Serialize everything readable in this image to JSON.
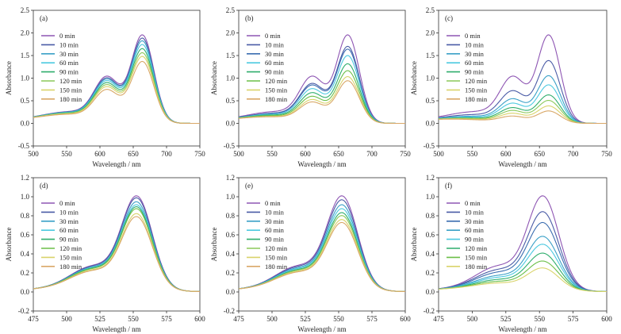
{
  "chart_data": [
    {
      "type": "line",
      "panel_label": "(a)",
      "xlabel": "Wavelength / nm",
      "ylabel": "Absorbance",
      "xlim": [
        500,
        750
      ],
      "ylim": [
        -0.5,
        2.5
      ],
      "xticks": [
        500,
        550,
        600,
        650,
        700,
        750
      ],
      "yticks": [
        -0.5,
        0.0,
        0.5,
        1.0,
        1.5,
        2.0,
        2.5
      ],
      "legend_position": "upper-left",
      "shape": "mb",
      "series": [
        {
          "name": "0 min",
          "color": "#8e56b3",
          "peak": 1.93,
          "shoulder": 1.16
        },
        {
          "name": "10 min",
          "color": "#4a5ba6",
          "peak": 1.86,
          "shoulder": 1.12
        },
        {
          "name": "30 min",
          "color": "#3aa0c7",
          "peak": 1.8,
          "shoulder": 1.09
        },
        {
          "name": "60 min",
          "color": "#4cc9e0",
          "peak": 1.72,
          "shoulder": 1.05
        },
        {
          "name": "90 min",
          "color": "#2fae6d",
          "peak": 1.63,
          "shoulder": 1.0
        },
        {
          "name": "120 min",
          "color": "#8cc95a",
          "peak": 1.54,
          "shoulder": 0.95
        },
        {
          "name": "150 min",
          "color": "#d9d36a",
          "peak": 1.46,
          "shoulder": 0.9
        },
        {
          "name": "180 min",
          "color": "#d9a868",
          "peak": 1.35,
          "shoulder": 0.83
        }
      ]
    },
    {
      "type": "line",
      "panel_label": "(b)",
      "xlabel": "Wavelength / nm",
      "ylabel": "Absorbance",
      "xlim": [
        500,
        750
      ],
      "ylim": [
        -0.5,
        2.5
      ],
      "xticks": [
        500,
        550,
        600,
        650,
        700,
        750
      ],
      "yticks": [
        -0.5,
        0.0,
        0.5,
        1.0,
        1.5,
        2.0,
        2.5
      ],
      "legend_position": "upper-left",
      "shape": "mb",
      "series": [
        {
          "name": "0 min",
          "color": "#8e56b3",
          "peak": 1.93,
          "shoulder": 1.16
        },
        {
          "name": "10 min",
          "color": "#4a5ba6",
          "peak": 1.68,
          "shoulder": 0.98
        },
        {
          "name": "30 min",
          "color": "#3b6db0",
          "peak": 1.62,
          "shoulder": 0.94
        },
        {
          "name": "60 min",
          "color": "#4cc9e0",
          "peak": 1.48,
          "shoulder": 0.85
        },
        {
          "name": "90 min",
          "color": "#2fae6d",
          "peak": 1.3,
          "shoulder": 0.75
        },
        {
          "name": "120 min",
          "color": "#6cbf48",
          "peak": 1.15,
          "shoulder": 0.66
        },
        {
          "name": "150 min",
          "color": "#d9d36a",
          "peak": 1.02,
          "shoulder": 0.58
        },
        {
          "name": "180 min",
          "color": "#d9a868",
          "peak": 0.93,
          "shoulder": 0.52
        }
      ]
    },
    {
      "type": "line",
      "panel_label": "(c)",
      "xlabel": "Wavelength / nm",
      "ylabel": "Absorbance",
      "xlim": [
        500,
        750
      ],
      "ylim": [
        -0.5,
        2.5
      ],
      "xticks": [
        500,
        550,
        600,
        650,
        700,
        750
      ],
      "yticks": [
        -0.5,
        0.0,
        0.5,
        1.0,
        1.5,
        2.0,
        2.5
      ],
      "legend_position": "upper-left",
      "shape": "mb",
      "series": [
        {
          "name": "0 min",
          "color": "#8e56b3",
          "peak": 1.93,
          "shoulder": 1.16
        },
        {
          "name": "10 min",
          "color": "#4a5ba6",
          "peak": 1.37,
          "shoulder": 0.8
        },
        {
          "name": "30 min",
          "color": "#3aa0c7",
          "peak": 1.04,
          "shoulder": 0.6
        },
        {
          "name": "60 min",
          "color": "#4cc9e0",
          "peak": 0.84,
          "shoulder": 0.49
        },
        {
          "name": "90 min",
          "color": "#2fae6d",
          "peak": 0.62,
          "shoulder": 0.38
        },
        {
          "name": "120 min",
          "color": "#8cc95a",
          "peak": 0.5,
          "shoulder": 0.31
        },
        {
          "name": "150 min",
          "color": "#d9d36a",
          "peak": 0.38,
          "shoulder": 0.24
        },
        {
          "name": "180 min",
          "color": "#d9a868",
          "peak": 0.27,
          "shoulder": 0.17
        }
      ]
    },
    {
      "type": "line",
      "panel_label": "(d)",
      "xlabel": "Wavelength / nm",
      "ylabel": "Absorbance",
      "xlim": [
        475,
        600
      ],
      "ylim": [
        -0.2,
        1.2
      ],
      "xticks": [
        475,
        500,
        525,
        550,
        575,
        600
      ],
      "yticks": [
        -0.2,
        0.0,
        0.2,
        0.4,
        0.6,
        0.8,
        1.0,
        1.2
      ],
      "legend_position": "upper-left",
      "shape": "rhb",
      "series": [
        {
          "name": "0 min",
          "color": "#8e56b3",
          "peak": 0.95
        },
        {
          "name": "10 min",
          "color": "#4a5ba6",
          "peak": 0.93
        },
        {
          "name": "30 min",
          "color": "#3aa0c7",
          "peak": 0.89
        },
        {
          "name": "60 min",
          "color": "#4cc9e0",
          "peak": 0.86
        },
        {
          "name": "90 min",
          "color": "#2fae6d",
          "peak": 0.84
        },
        {
          "name": "120 min",
          "color": "#6cbf48",
          "peak": 0.82
        },
        {
          "name": "150 min",
          "color": "#d9d36a",
          "peak": 0.77
        },
        {
          "name": "180 min",
          "color": "#d9a868",
          "peak": 0.74
        }
      ]
    },
    {
      "type": "line",
      "panel_label": "(e)",
      "xlabel": "Wavelength / nm",
      "ylabel": "Absorbance",
      "xlim": [
        475,
        600
      ],
      "ylim": [
        -0.2,
        1.2
      ],
      "xticks": [
        475,
        500,
        525,
        550,
        575,
        600
      ],
      "yticks": [
        -0.2,
        0.0,
        0.2,
        0.4,
        0.6,
        0.8,
        1.0,
        1.2
      ],
      "legend_position": "upper-left",
      "shape": "rhb",
      "series": [
        {
          "name": "0 min",
          "color": "#8e56b3",
          "peak": 0.95
        },
        {
          "name": "10 min",
          "color": "#4a5ba6",
          "peak": 0.91
        },
        {
          "name": "30 min",
          "color": "#3aa0c7",
          "peak": 0.86
        },
        {
          "name": "60 min",
          "color": "#4cc9e0",
          "peak": 0.82
        },
        {
          "name": "90 min",
          "color": "#2fae6d",
          "peak": 0.78
        },
        {
          "name": "120 min",
          "color": "#8cc95a",
          "peak": 0.75
        },
        {
          "name": "150 min",
          "color": "#d9d36a",
          "peak": 0.71
        },
        {
          "name": "180 min",
          "color": "#d9a868",
          "peak": 0.68
        }
      ]
    },
    {
      "type": "line",
      "panel_label": "(f)",
      "xlabel": "Wavelength / nm",
      "ylabel": "Absorbance",
      "xlim": [
        475,
        600
      ],
      "ylim": [
        -0.2,
        1.2
      ],
      "xticks": [
        475,
        500,
        525,
        550,
        575,
        600
      ],
      "yticks": [
        -0.2,
        0.0,
        0.2,
        0.4,
        0.6,
        0.8,
        1.0,
        1.2
      ],
      "legend_position": "upper-left",
      "shape": "rhb",
      "series": [
        {
          "name": "0 min",
          "color": "#8e56b3",
          "peak": 0.95
        },
        {
          "name": "10 min",
          "color": "#4a5ba6",
          "peak": 0.79
        },
        {
          "name": "30 min",
          "color": "#3b6db0",
          "peak": 0.68
        },
        {
          "name": "60 min",
          "color": "#3aa0c7",
          "peak": 0.54
        },
        {
          "name": "90 min",
          "color": "#4cc9e0",
          "peak": 0.46
        },
        {
          "name": "120 min",
          "color": "#2fae6d",
          "peak": 0.37
        },
        {
          "name": "150 min",
          "color": "#6cbf48",
          "peak": 0.29
        },
        {
          "name": "180 min",
          "color": "#d9d36a",
          "peak": 0.22
        }
      ]
    }
  ]
}
